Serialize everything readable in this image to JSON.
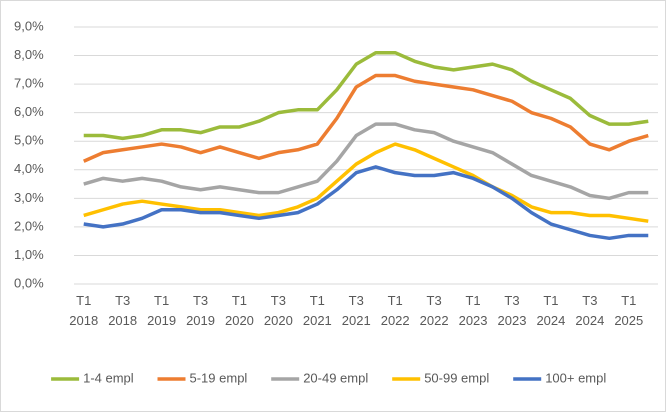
{
  "chart_data": {
    "type": "line",
    "categories": [
      "T1\n2018",
      null,
      "T3\n2018",
      null,
      "T1\n2019",
      null,
      "T3\n2019",
      null,
      "T1\n2020",
      null,
      "T3\n2020",
      null,
      "T1\n2021",
      null,
      "T3\n2021",
      null,
      "T1\n2022",
      null,
      "T3\n2022",
      null,
      "T1\n2023",
      null,
      "T3\n2023",
      null,
      "T1\n2024",
      null,
      "T3\n2024",
      null,
      "T1\n2025",
      null
    ],
    "series": [
      {
        "name": "1-4 empl",
        "color": "#9bbb3b",
        "values": [
          5.2,
          5.2,
          5.1,
          5.2,
          5.4,
          5.4,
          5.3,
          5.5,
          5.5,
          5.7,
          6.0,
          6.1,
          6.1,
          6.8,
          7.7,
          8.1,
          8.1,
          7.8,
          7.6,
          7.5,
          7.6,
          7.7,
          7.5,
          7.1,
          6.8,
          6.5,
          5.9,
          5.6,
          5.6,
          5.7
        ]
      },
      {
        "name": "5-19 empl",
        "color": "#ed7d31",
        "values": [
          4.3,
          4.6,
          4.7,
          4.8,
          4.9,
          4.8,
          4.6,
          4.8,
          4.6,
          4.4,
          4.6,
          4.7,
          4.9,
          5.8,
          6.9,
          7.3,
          7.3,
          7.1,
          7.0,
          6.9,
          6.8,
          6.6,
          6.4,
          6.0,
          5.8,
          5.5,
          4.9,
          4.7,
          5.0,
          5.2
        ]
      },
      {
        "name": "20-49 empl",
        "color": "#a5a5a5",
        "values": [
          3.5,
          3.7,
          3.6,
          3.7,
          3.6,
          3.4,
          3.3,
          3.4,
          3.3,
          3.2,
          3.2,
          3.4,
          3.6,
          4.3,
          5.2,
          5.6,
          5.6,
          5.4,
          5.3,
          5.0,
          4.8,
          4.6,
          4.2,
          3.8,
          3.6,
          3.4,
          3.1,
          3.0,
          3.2,
          3.2
        ]
      },
      {
        "name": "50-99 empl",
        "color": "#ffc000",
        "values": [
          2.4,
          2.6,
          2.8,
          2.9,
          2.8,
          2.7,
          2.6,
          2.6,
          2.5,
          2.4,
          2.5,
          2.7,
          3.0,
          3.6,
          4.2,
          4.6,
          4.9,
          4.7,
          4.4,
          4.1,
          3.8,
          3.4,
          3.1,
          2.7,
          2.5,
          2.5,
          2.4,
          2.4,
          2.3,
          2.2
        ]
      },
      {
        "name": "100+ empl",
        "color": "#4472c4",
        "values": [
          2.1,
          2.0,
          2.1,
          2.3,
          2.6,
          2.6,
          2.5,
          2.5,
          2.4,
          2.3,
          2.4,
          2.5,
          2.8,
          3.3,
          3.9,
          4.1,
          3.9,
          3.8,
          3.8,
          3.9,
          3.7,
          3.4,
          3.0,
          2.5,
          2.1,
          1.9,
          1.7,
          1.6,
          1.7,
          1.7
        ]
      }
    ],
    "ylim": [
      0,
      9
    ],
    "yticks": [
      {
        "value": 0,
        "label": "0,0%"
      },
      {
        "value": 1,
        "label": "1,0%"
      },
      {
        "value": 2,
        "label": "2,0%"
      },
      {
        "value": 3,
        "label": "3,0%"
      },
      {
        "value": 4,
        "label": "4,0%"
      },
      {
        "value": 5,
        "label": "5,0%"
      },
      {
        "value": 6,
        "label": "6,0%"
      },
      {
        "value": 7,
        "label": "7,0%"
      },
      {
        "value": 8,
        "label": "8,0%"
      },
      {
        "value": 9,
        "label": "9,0%"
      }
    ],
    "grid": true,
    "legend": "bottom"
  }
}
